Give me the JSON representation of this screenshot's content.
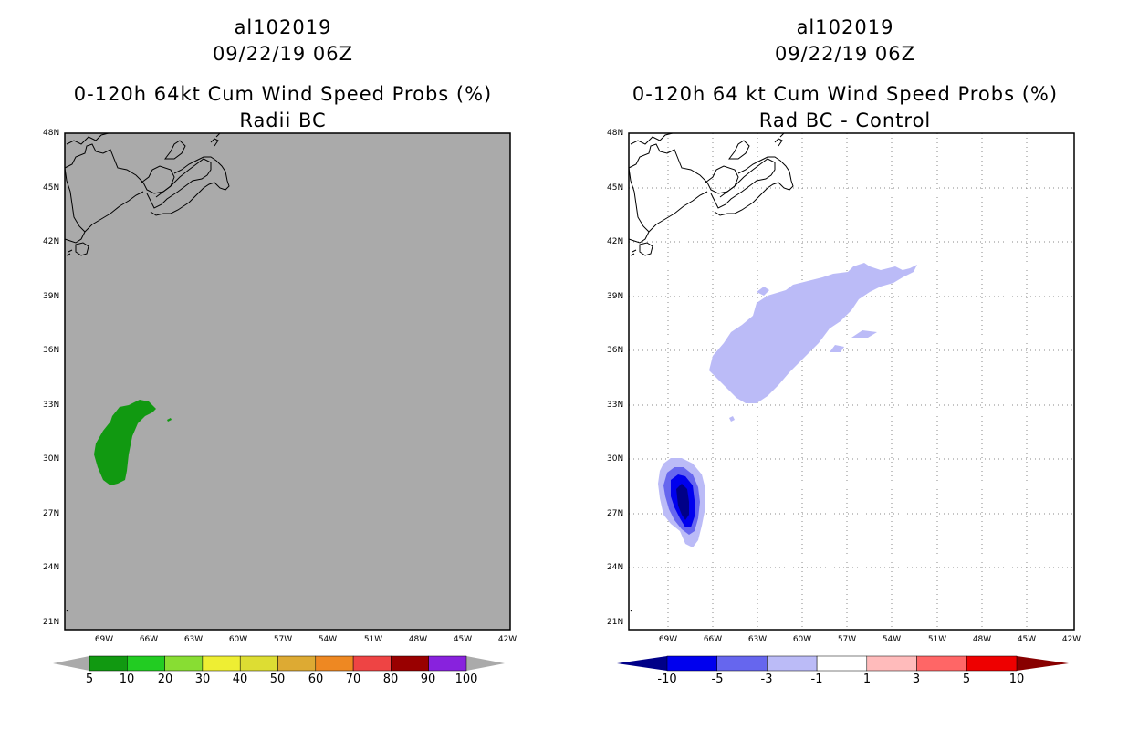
{
  "left_panel": {
    "title_line1": "al102019",
    "title_line2": "09/22/19 06Z",
    "title_line3": "0-120h 64kt Cum Wind Speed Probs (%)",
    "title_line4": "Radii BC",
    "map_background_color": "#aaaaaa",
    "shading_color": "#119911"
  },
  "right_panel": {
    "title_line1": "al102019",
    "title_line2": "09/22/19 06Z",
    "title_line3": "0-120h 64 kt Cum Wind Speed Probs (%)",
    "title_line4": "Rad BC - Control",
    "map_background_color": "#ffffff"
  },
  "axes": {
    "lat_labels": [
      "48N",
      "45N",
      "42N",
      "39N",
      "36N",
      "33N",
      "30N",
      "27N",
      "24N",
      "21N"
    ],
    "lon_labels": [
      "69W",
      "66W",
      "63W",
      "60W",
      "57W",
      "54W",
      "51W",
      "48W",
      "45W",
      "42W"
    ]
  },
  "left_colorbar": {
    "labels": [
      "5",
      "10",
      "20",
      "30",
      "40",
      "50",
      "60",
      "70",
      "80",
      "90",
      "100"
    ],
    "colors": [
      "#119911",
      "#22cc22",
      "#88dd33",
      "#eeee33",
      "#dddd33",
      "#ddaa33",
      "#ee8822",
      "#ee4444",
      "#990000",
      "#8822dd"
    ],
    "end_color": "#aaaaaa"
  },
  "right_colorbar": {
    "labels": [
      "-10",
      "-5",
      "-3",
      "-1",
      "1",
      "3",
      "5",
      "10"
    ],
    "colors": [
      "#0000ee",
      "#6666ee",
      "#bbbbf7",
      "#ffffff",
      "#ffbbbb",
      "#ff6666",
      "#ee0000"
    ],
    "low_end_color": "#000088",
    "high_end_color": "#880000"
  }
}
